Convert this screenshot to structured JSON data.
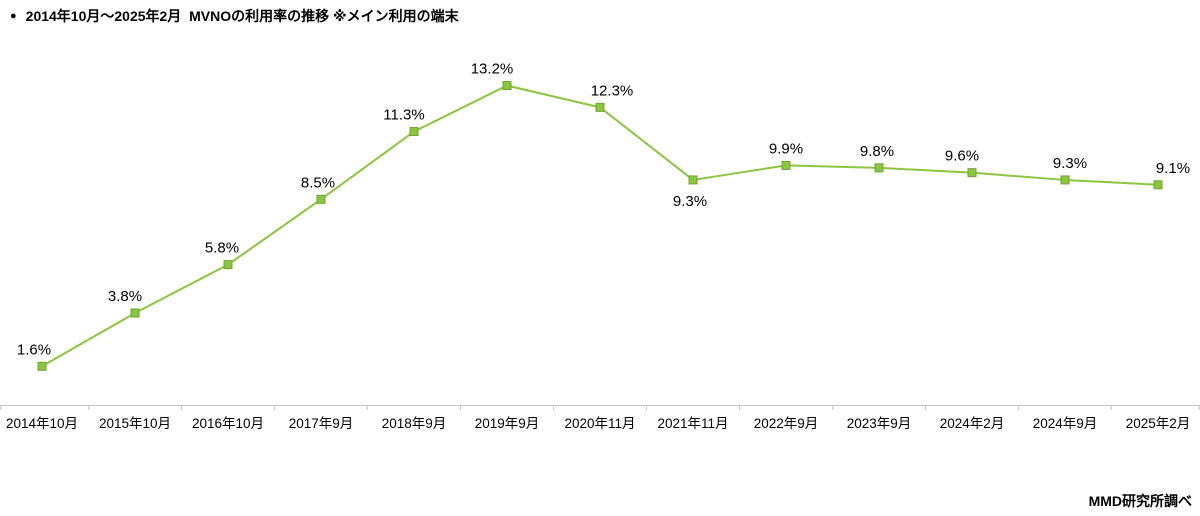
{
  "header": {
    "bullet": "●",
    "title": "2014年10月〜2025年2月  MVNOの利用率の推移 ※メイン利用の端末"
  },
  "source_note": "MMD研究所調べ",
  "chart_data": {
    "type": "line",
    "title": "2014年10月〜2025年2月 MVNOの利用率の推移 ※メイン利用の端末",
    "categories": [
      "2014年10月",
      "2015年10月",
      "2016年10月",
      "2017年9月",
      "2018年9月",
      "2019年9月",
      "2020年11月",
      "2021年11月",
      "2022年9月",
      "2023年9月",
      "2024年2月",
      "2024年9月",
      "2025年2月"
    ],
    "values": [
      1.6,
      3.8,
      5.8,
      8.5,
      11.3,
      13.2,
      12.3,
      9.3,
      9.9,
      9.8,
      9.6,
      9.3,
      9.1
    ],
    "labels": [
      "1.6%",
      "3.8%",
      "5.8%",
      "8.5%",
      "11.3%",
      "13.2%",
      "12.3%",
      "9.3%",
      "9.9%",
      "9.8%",
      "9.6%",
      "9.3%",
      "9.1%"
    ],
    "unit": "%",
    "xlabel": "",
    "ylabel": "",
    "ylim": [
      0,
      14.5
    ],
    "grid": false,
    "legend": "none",
    "line_color": "#8CC540",
    "marker": "square",
    "marker_color": "#8CC540",
    "marker_border_color": "#6FA433",
    "axis_color": "#C6C6C6",
    "text_color": "#000000",
    "label_positions": [
      "above",
      "above",
      "above",
      "above",
      "above",
      "above",
      "above",
      "below",
      "above",
      "above",
      "above",
      "above",
      "above"
    ],
    "label_dx": [
      -8,
      -10,
      -6,
      -3,
      -10,
      -15,
      12,
      -3,
      0,
      -2,
      -10,
      5,
      15
    ]
  }
}
